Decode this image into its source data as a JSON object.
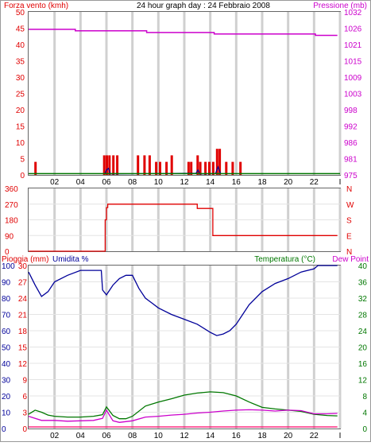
{
  "top": {
    "title": "24 hour graph day : 24 Febbraio 2008",
    "left_label": "Forza vento (kmh)",
    "right_label": "Pressione (mb)"
  },
  "middle": {
    "left_ticks": [
      "360",
      "270",
      "180",
      "90",
      "0"
    ],
    "right_letters": [
      "N",
      "W",
      "S",
      "E",
      "N"
    ]
  },
  "bottom": {
    "label_rain": "Pioggia (mm)",
    "label_humidity": "Umidita %",
    "label_temp": "Temperatura (°C)",
    "label_dew": "Dew Point"
  },
  "colors": {
    "wind": "#e00000",
    "pressure": "#cc00cc",
    "direction": "#e00000",
    "humidity": "#000099",
    "temperature": "#007700",
    "dew": "#cc00cc",
    "rain": "#ff0066",
    "grid": "#d0d0d0"
  },
  "chart_data": [
    {
      "type": "bar",
      "title": "24 hour graph day : 24 Febbraio 2008",
      "xlabel": "",
      "ylabel": "Forza vento (kmh)",
      "ylabel_right": "Pressione (mb)",
      "x_ticks": [
        "02",
        "04",
        "06",
        "08",
        "10",
        "12",
        "14",
        "16",
        "18",
        "20",
        "22",
        "I"
      ],
      "yticks_left": [
        "50",
        "45",
        "40",
        "35",
        "30",
        "25",
        "20",
        "15",
        "10",
        "5",
        "0"
      ],
      "yticks_right": [
        "1032",
        "1026",
        "1021",
        "1015",
        "1009",
        "1003",
        "998",
        "992",
        "986",
        "981",
        "975"
      ],
      "ylim": [
        0,
        50
      ],
      "ylim_right": [
        975,
        1032
      ],
      "grid": true,
      "series": [
        {
          "name": "Forza vento (kmh)",
          "type": "bar",
          "points": [
            [
              0.5,
              4
            ],
            [
              5.8,
              6
            ],
            [
              6.0,
              6
            ],
            [
              6.2,
              6
            ],
            [
              6.5,
              6
            ],
            [
              6.8,
              6
            ],
            [
              8.4,
              6
            ],
            [
              8.9,
              6
            ],
            [
              9.3,
              6
            ],
            [
              9.8,
              4
            ],
            [
              10.1,
              4
            ],
            [
              10.6,
              4
            ],
            [
              11.0,
              6
            ],
            [
              12.3,
              4
            ],
            [
              12.5,
              4
            ],
            [
              13.0,
              6
            ],
            [
              13.2,
              4
            ],
            [
              13.6,
              4
            ],
            [
              13.9,
              4
            ],
            [
              14.2,
              4
            ],
            [
              14.5,
              8
            ],
            [
              14.7,
              8
            ],
            [
              15.2,
              4
            ],
            [
              15.7,
              4
            ],
            [
              16.3,
              4
            ]
          ]
        },
        {
          "name": "Pressione (mb)",
          "type": "line",
          "points": [
            [
              0,
              1025.9
            ],
            [
              3.5,
              1025.9
            ],
            [
              3.6,
              1025.4
            ],
            [
              9.0,
              1025.4
            ],
            [
              9.1,
              1024.8
            ],
            [
              14.2,
              1024.8
            ],
            [
              14.3,
              1024.3
            ],
            [
              22.0,
              1024.3
            ],
            [
              22.1,
              1023.8
            ],
            [
              23.8,
              1023.8
            ]
          ]
        },
        {
          "name": "wind gust detail",
          "type": "line",
          "points": [
            [
              5.9,
              0.5
            ],
            [
              6.0,
              1.5
            ],
            [
              6.15,
              2.0
            ],
            [
              6.3,
              0.3
            ],
            [
              12.9,
              0.5
            ],
            [
              13.05,
              1.5
            ],
            [
              13.2,
              0.3
            ],
            [
              14.4,
              0.4
            ],
            [
              14.6,
              2.5
            ],
            [
              14.8,
              0.4
            ]
          ]
        }
      ]
    },
    {
      "type": "line",
      "title": "",
      "ylabel": "",
      "yticks": [
        "360",
        "270",
        "180",
        "90",
        "0"
      ],
      "right_labels": [
        "N",
        "W",
        "S",
        "E",
        "N"
      ],
      "ylim": [
        0,
        360
      ],
      "grid": true,
      "series": [
        {
          "name": "wind direction",
          "points": [
            [
              0,
              0
            ],
            [
              5.9,
              0
            ],
            [
              5.9,
              180
            ],
            [
              6.0,
              180
            ],
            [
              6.0,
              250
            ],
            [
              6.1,
              250
            ],
            [
              6.1,
              270
            ],
            [
              13.0,
              270
            ],
            [
              13.0,
              245
            ],
            [
              14.2,
              245
            ],
            [
              14.2,
              90
            ],
            [
              23.8,
              90
            ]
          ]
        }
      ]
    },
    {
      "type": "line",
      "title": "",
      "ylabel_left_outer": "Pioggia (mm)",
      "ylabel_left_inner": "Umidita %",
      "ylabel_right": "Temperatura (°C)",
      "ylabel_right_2": "Dew Point",
      "yticks_rain": [
        "30",
        "27",
        "24",
        "21",
        "18",
        "15",
        "12",
        "9",
        "6",
        "3",
        "0"
      ],
      "yticks_humidity": [
        "100",
        "90",
        "80",
        "70",
        "60",
        "50",
        "40",
        "30",
        "20",
        "10",
        "0"
      ],
      "yticks_temp": [
        "40",
        "36",
        "32",
        "28",
        "24",
        "20",
        "16",
        "12",
        "8",
        "4",
        "0"
      ],
      "ylim_humidity": [
        0,
        100
      ],
      "ylim_temp": [
        0,
        40
      ],
      "grid": true,
      "series": [
        {
          "name": "Umidita %",
          "points": [
            [
              0,
              96
            ],
            [
              0.5,
              88
            ],
            [
              1.0,
              81
            ],
            [
              1.5,
              84
            ],
            [
              2.0,
              90
            ],
            [
              3.0,
              94
            ],
            [
              4.0,
              97
            ],
            [
              5.0,
              97
            ],
            [
              5.6,
              97
            ],
            [
              5.7,
              85
            ],
            [
              6.0,
              82
            ],
            [
              6.5,
              88
            ],
            [
              7.0,
              92
            ],
            [
              7.5,
              94
            ],
            [
              8.0,
              94
            ],
            [
              8.5,
              86
            ],
            [
              9.0,
              80
            ],
            [
              9.5,
              77
            ],
            [
              10.0,
              74
            ],
            [
              11.0,
              70
            ],
            [
              12.0,
              67
            ],
            [
              13.0,
              64
            ],
            [
              14.0,
              59
            ],
            [
              14.5,
              57
            ],
            [
              15.0,
              58
            ],
            [
              15.5,
              60
            ],
            [
              16.0,
              64
            ],
            [
              16.5,
              70
            ],
            [
              17.0,
              76
            ],
            [
              18.0,
              84
            ],
            [
              19.0,
              89
            ],
            [
              20.0,
              92
            ],
            [
              21.0,
              96
            ],
            [
              22.0,
              98
            ],
            [
              22.3,
              100
            ],
            [
              23.8,
              100
            ]
          ]
        },
        {
          "name": "Temperatura (°C)",
          "points": [
            [
              0,
              3.5
            ],
            [
              0.5,
              4.5
            ],
            [
              1.0,
              4.0
            ],
            [
              1.5,
              3.3
            ],
            [
              2.0,
              3.0
            ],
            [
              3.0,
              2.8
            ],
            [
              4.0,
              2.8
            ],
            [
              5.0,
              3.0
            ],
            [
              5.7,
              3.4
            ],
            [
              6.0,
              5.3
            ],
            [
              6.5,
              3.2
            ],
            [
              7.0,
              2.4
            ],
            [
              7.5,
              2.4
            ],
            [
              8.0,
              3.0
            ],
            [
              9.0,
              5.5
            ],
            [
              10.0,
              6.5
            ],
            [
              11.0,
              7.3
            ],
            [
              12.0,
              8.2
            ],
            [
              13.0,
              8.7
            ],
            [
              14.0,
              9.0
            ],
            [
              15.0,
              8.8
            ],
            [
              16.0,
              8.0
            ],
            [
              17.0,
              6.5
            ],
            [
              18.0,
              5.2
            ],
            [
              19.0,
              4.8
            ],
            [
              20.0,
              4.5
            ],
            [
              21.0,
              4.2
            ],
            [
              22.0,
              3.5
            ],
            [
              23.0,
              3.2
            ],
            [
              23.8,
              3.1
            ]
          ]
        },
        {
          "name": "Dew Point",
          "points": [
            [
              0,
              3.0
            ],
            [
              1.0,
              2.0
            ],
            [
              2.0,
              2.0
            ],
            [
              3.0,
              1.8
            ],
            [
              4.0,
              1.9
            ],
            [
              5.0,
              2.0
            ],
            [
              5.7,
              2.5
            ],
            [
              6.0,
              4.5
            ],
            [
              6.5,
              1.9
            ],
            [
              7.0,
              1.5
            ],
            [
              8.0,
              1.9
            ],
            [
              9.0,
              2.8
            ],
            [
              10.0,
              3.0
            ],
            [
              11.0,
              3.3
            ],
            [
              12.0,
              3.5
            ],
            [
              13.0,
              3.8
            ],
            [
              14.0,
              4.0
            ],
            [
              15.0,
              4.3
            ],
            [
              16.0,
              4.5
            ],
            [
              17.0,
              4.6
            ],
            [
              18.0,
              4.5
            ],
            [
              19.0,
              4.3
            ],
            [
              20.0,
              4.5
            ],
            [
              21.0,
              4.4
            ],
            [
              22.0,
              3.6
            ],
            [
              23.0,
              3.6
            ],
            [
              23.8,
              3.7
            ]
          ]
        },
        {
          "name": "Pioggia (mm)",
          "points": [
            [
              0,
              0.4
            ],
            [
              23.8,
              0.4
            ]
          ]
        }
      ]
    }
  ]
}
